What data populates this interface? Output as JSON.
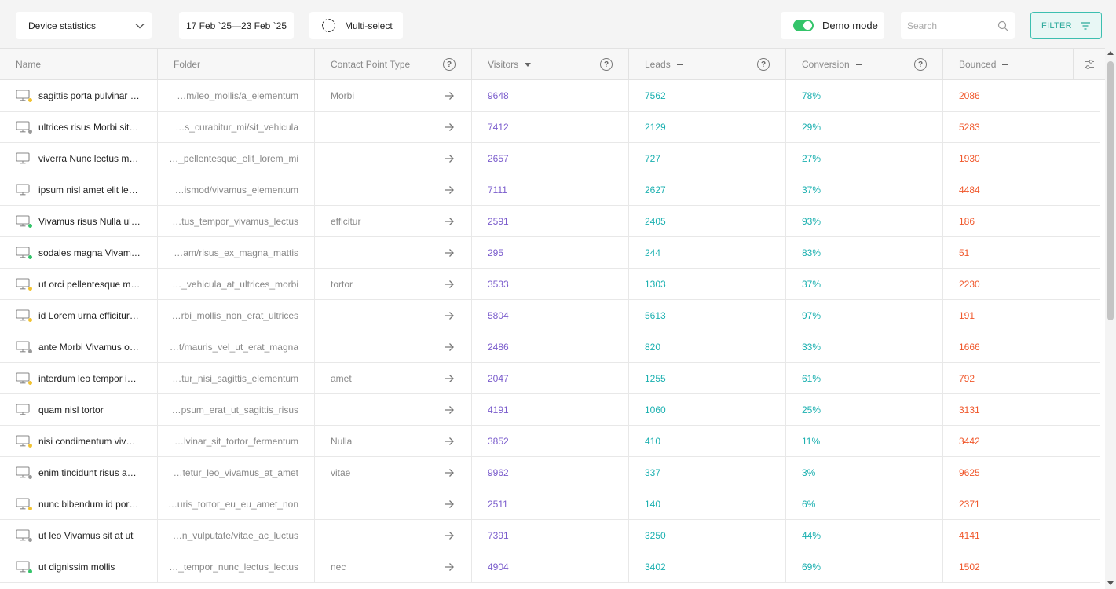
{
  "toolbar": {
    "report_select": "Device statistics",
    "date_range": "17 Feb `25—23 Feb `25",
    "multi_select_label": "Multi-select",
    "demo_mode_label": "Demo mode",
    "demo_mode_on": true,
    "search_placeholder": "Search",
    "filter_label": "FILTER"
  },
  "columns": {
    "name": "Name",
    "folder": "Folder",
    "contact_point_type": "Contact Point Type",
    "visitors": "Visitors",
    "leads": "Leads",
    "conversion": "Conversion",
    "bounced": "Bounced",
    "help_icon": "?"
  },
  "colors": {
    "visitors": "#7a5ccc",
    "leads": "#1bb0b0",
    "conversion": "#1bb0b0",
    "bounced": "#f0582c",
    "status_yellow": "#f1c232",
    "status_green": "#34c46a",
    "status_gray": "#9a9a9a"
  },
  "rows": [
    {
      "name": "sagittis porta pulvinar …",
      "status": "yellow",
      "folder": "…m/leo_mollis/a_elementum",
      "cpt": "Morbi",
      "visitors": "9648",
      "leads": "7562",
      "conversion": "78%",
      "bounced": "2086"
    },
    {
      "name": "ultrices risus Morbi sit …",
      "status": "gray",
      "folder": "…s_curabitur_mi/sit_vehicula",
      "cpt": "",
      "visitors": "7412",
      "leads": "2129",
      "conversion": "29%",
      "bounced": "5283"
    },
    {
      "name": "viverra Nunc lectus mi …",
      "status": "none",
      "folder": "…_pellentesque_elit_lorem_mi",
      "cpt": "",
      "visitors": "2657",
      "leads": "727",
      "conversion": "27%",
      "bounced": "1930"
    },
    {
      "name": "ipsum nisl amet elit le…",
      "status": "none",
      "folder": "…ismod/vivamus_elementum",
      "cpt": "",
      "visitors": "7111",
      "leads": "2627",
      "conversion": "37%",
      "bounced": "4484"
    },
    {
      "name": "Vivamus risus Nulla ult…",
      "status": "green",
      "folder": "…tus_tempor_vivamus_lectus",
      "cpt": "efficitur",
      "visitors": "2591",
      "leads": "2405",
      "conversion": "93%",
      "bounced": "186"
    },
    {
      "name": "sodales magna Vivam…",
      "status": "green",
      "folder": "…am/risus_ex_magna_mattis",
      "cpt": "",
      "visitors": "295",
      "leads": "244",
      "conversion": "83%",
      "bounced": "51"
    },
    {
      "name": "ut orci pellentesque m…",
      "status": "yellow",
      "folder": "…_vehicula_at_ultrices_morbi",
      "cpt": "tortor",
      "visitors": "3533",
      "leads": "1303",
      "conversion": "37%",
      "bounced": "2230"
    },
    {
      "name": "id Lorem urna efficitur …",
      "status": "yellow",
      "folder": "…rbi_mollis_non_erat_ultrices",
      "cpt": "",
      "visitors": "5804",
      "leads": "5613",
      "conversion": "97%",
      "bounced": "191"
    },
    {
      "name": "ante Morbi Vivamus or…",
      "status": "gray",
      "folder": "…t/mauris_vel_ut_erat_magna",
      "cpt": "",
      "visitors": "2486",
      "leads": "820",
      "conversion": "33%",
      "bounced": "1666"
    },
    {
      "name": "interdum leo tempor ip…",
      "status": "yellow",
      "folder": "…tur_nisi_sagittis_elementum",
      "cpt": "amet",
      "visitors": "2047",
      "leads": "1255",
      "conversion": "61%",
      "bounced": "792"
    },
    {
      "name": "quam nisl tortor",
      "status": "none",
      "folder": "…psum_erat_ut_sagittis_risus",
      "cpt": "",
      "visitors": "4191",
      "leads": "1060",
      "conversion": "25%",
      "bounced": "3131"
    },
    {
      "name": "nisi condimentum vive…",
      "status": "yellow",
      "folder": "…lvinar_sit_tortor_fermentum",
      "cpt": "Nulla",
      "visitors": "3852",
      "leads": "410",
      "conversion": "11%",
      "bounced": "3442"
    },
    {
      "name": "enim tincidunt risus a…",
      "status": "gray",
      "folder": "…tetur_leo_vivamus_at_amet",
      "cpt": "vitae",
      "visitors": "9962",
      "leads": "337",
      "conversion": "3%",
      "bounced": "9625"
    },
    {
      "name": "nunc bibendum id port…",
      "status": "yellow",
      "folder": "…uris_tortor_eu_eu_amet_non",
      "cpt": "",
      "visitors": "2511",
      "leads": "140",
      "conversion": "6%",
      "bounced": "2371"
    },
    {
      "name": "ut leo Vivamus sit at ut",
      "status": "gray",
      "folder": "…n_vulputate/vitae_ac_luctus",
      "cpt": "",
      "visitors": "7391",
      "leads": "3250",
      "conversion": "44%",
      "bounced": "4141"
    },
    {
      "name": "ut dignissim mollis",
      "status": "green",
      "folder": "…_tempor_nunc_lectus_lectus",
      "cpt": "nec",
      "visitors": "4904",
      "leads": "3402",
      "conversion": "69%",
      "bounced": "1502"
    }
  ]
}
